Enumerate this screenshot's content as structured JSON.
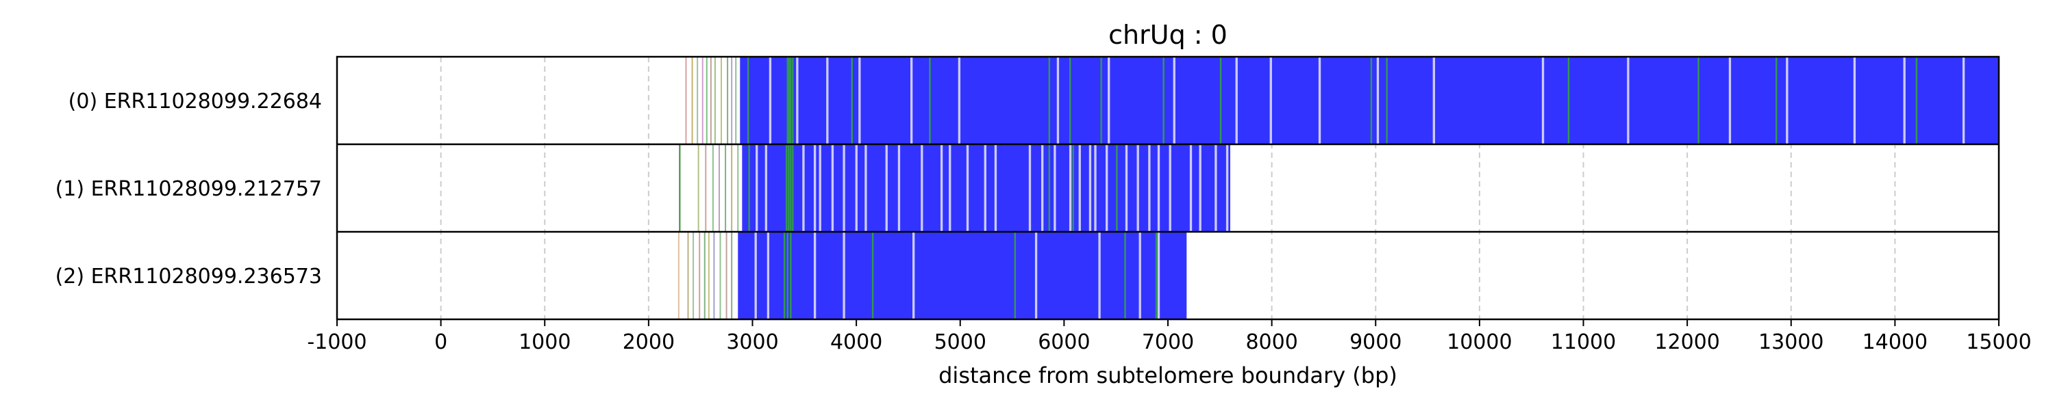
{
  "chart_data": {
    "type": "heatmap",
    "title": "chrUq : 0",
    "xlabel": "distance from subtelomere boundary (bp)",
    "ylabel": "",
    "xlim": [
      -1000,
      15000
    ],
    "xticks": [
      -1000,
      0,
      1000,
      2000,
      3000,
      4000,
      5000,
      6000,
      7000,
      8000,
      9000,
      10000,
      11000,
      12000,
      13000,
      14000,
      15000
    ],
    "xtick_labels": [
      "-1000",
      "0",
      "1000",
      "2000",
      "3000",
      "4000",
      "5000",
      "6000",
      "7000",
      "8000",
      "9000",
      "10000",
      "11000",
      "12000",
      "13000",
      "14000",
      "15000"
    ],
    "grid": "vertical dashed",
    "colors": {
      "repeat": "#3333ff",
      "variant": "#33aa33",
      "white_gap": "#ffffff",
      "grid": "#cccccc"
    },
    "rows": [
      {
        "label": "(0) ERR11028099.22684",
        "block_start": 2880,
        "block_end": 15000,
        "scatter_lines": [
          {
            "x": 2360,
            "color": "#d9a0a0"
          },
          {
            "x": 2420,
            "color": "#c9b070"
          },
          {
            "x": 2470,
            "color": "#a0c0a0"
          },
          {
            "x": 2520,
            "color": "#d0a0d0"
          },
          {
            "x": 2560,
            "color": "#80c080"
          },
          {
            "x": 2600,
            "color": "#c0a0a0"
          },
          {
            "x": 2640,
            "color": "#a0c080"
          },
          {
            "x": 2700,
            "color": "#c0c080"
          },
          {
            "x": 2760,
            "color": "#80b080"
          },
          {
            "x": 2800,
            "color": "#b0a0d0"
          },
          {
            "x": 2840,
            "color": "#90c090"
          }
        ],
        "gaps": [
          3160,
          3420,
          3710,
          4020,
          4520,
          4980,
          5930,
          6420,
          7050,
          7650,
          7980,
          8450,
          9010,
          9550,
          10600,
          11420,
          12400,
          12950,
          13600,
          14080,
          14650
        ],
        "greens": [
          2950,
          3330,
          3345,
          3360,
          3380,
          3950,
          4700,
          5850,
          6050,
          6350,
          6950,
          7500,
          8950,
          9100,
          10850,
          12100,
          12850,
          14200
        ]
      },
      {
        "label": "(1) ERR11028099.212757",
        "block_start": 2900,
        "block_end": 7600,
        "scatter_lines": [
          {
            "x": 2300,
            "color": "#338833"
          },
          {
            "x": 2480,
            "color": "#b0c080"
          },
          {
            "x": 2550,
            "color": "#d0a0a0"
          },
          {
            "x": 2620,
            "color": "#90c090"
          },
          {
            "x": 2680,
            "color": "#c0a0c0"
          },
          {
            "x": 2740,
            "color": "#80b080"
          },
          {
            "x": 2800,
            "color": "#c0b080"
          },
          {
            "x": 2860,
            "color": "#90c090"
          }
        ],
        "gaps": [
          3030,
          3120,
          3480,
          3590,
          3640,
          3760,
          3870,
          3990,
          4080,
          4280,
          4400,
          4620,
          4810,
          4890,
          5060,
          5230,
          5330,
          5660,
          5780,
          5900,
          6050,
          6140,
          6240,
          6290,
          6400,
          6590,
          6700,
          6810,
          6900,
          7010,
          7210,
          7300,
          7450,
          7560
        ],
        "greens": [
          2960,
          3320,
          3340,
          3360,
          3380,
          5850,
          6080,
          6500
        ]
      },
      {
        "label": "(2) ERR11028099.236573",
        "block_start": 2860,
        "block_end": 7180,
        "scatter_lines": [
          {
            "x": 2290,
            "color": "#e0c0a0"
          },
          {
            "x": 2380,
            "color": "#c0b080"
          },
          {
            "x": 2430,
            "color": "#a0c0a0"
          },
          {
            "x": 2490,
            "color": "#d0a0a0"
          },
          {
            "x": 2540,
            "color": "#80b080"
          },
          {
            "x": 2580,
            "color": "#c0c080"
          },
          {
            "x": 2630,
            "color": "#a0a0d0"
          },
          {
            "x": 2690,
            "color": "#90c090"
          },
          {
            "x": 2750,
            "color": "#c0a0a0"
          },
          {
            "x": 2800,
            "color": "#80b080"
          }
        ],
        "gaps": [
          3020,
          3140,
          3590,
          3870,
          4540,
          5720,
          6330,
          6720,
          6900
        ],
        "greens": [
          3300,
          3330,
          3360,
          4150,
          5520,
          6580,
          6880
        ]
      }
    ]
  }
}
